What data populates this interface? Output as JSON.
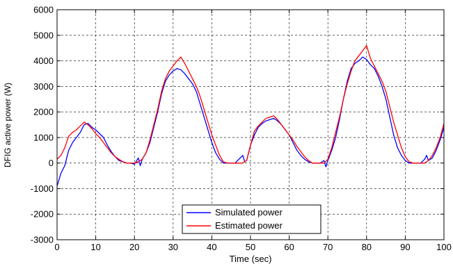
{
  "chart_data": {
    "type": "line",
    "title": "",
    "xlabel": "Time (sec)",
    "ylabel": "DFIG active power (W)",
    "xlim": [
      0,
      100
    ],
    "ylim": [
      -3000,
      6000
    ],
    "xticks": [
      0,
      10,
      20,
      30,
      40,
      50,
      60,
      70,
      80,
      90,
      100
    ],
    "yticks": [
      -3000,
      -2000,
      -1000,
      0,
      1000,
      2000,
      3000,
      4000,
      5000,
      6000
    ],
    "xtick_labels": [
      "0",
      "10",
      "20",
      "30",
      "40",
      "50",
      "60",
      "70",
      "80",
      "90",
      "100"
    ],
    "ytick_labels": [
      "-3000",
      "-2000",
      "-1000",
      "0",
      "1000",
      "2000",
      "3000",
      "4000",
      "5000",
      "6000"
    ],
    "grid": true,
    "grid_style": "dashed",
    "legend_position": "bottom-center",
    "series": [
      {
        "name": "Simulated power",
        "color": "#0000ff",
        "x": [
          0,
          1,
          2,
          3,
          4,
          5,
          6,
          7,
          8,
          9,
          10,
          11,
          12,
          13,
          14,
          15,
          16,
          17,
          18,
          19,
          20,
          21,
          21.5,
          22,
          23,
          24,
          25,
          26,
          27,
          28,
          29,
          30,
          31,
          32,
          33,
          34,
          35,
          36,
          37,
          38,
          39,
          40,
          41,
          42,
          43,
          44,
          45,
          46,
          47,
          48,
          48.5,
          49,
          50,
          51,
          52,
          53,
          54,
          55,
          56,
          57,
          58,
          59,
          60,
          61,
          62,
          63,
          64,
          65,
          66,
          67,
          68,
          69,
          69.5,
          70,
          71,
          72,
          73,
          74,
          75,
          76,
          77,
          78,
          79,
          80,
          81,
          82,
          83,
          84,
          85,
          86,
          87,
          88,
          89,
          90,
          91,
          92,
          93,
          94,
          95,
          95.5,
          96,
          97,
          98,
          99,
          100
        ],
        "y": [
          -900,
          -400,
          -100,
          500,
          800,
          1000,
          1200,
          1500,
          1550,
          1400,
          1300,
          1150,
          1000,
          700,
          450,
          250,
          100,
          50,
          0,
          0,
          -50,
          200,
          -100,
          150,
          400,
          800,
          1400,
          2000,
          2700,
          3200,
          3450,
          3600,
          3700,
          3650,
          3500,
          3300,
          3100,
          2800,
          2300,
          1800,
          1300,
          800,
          400,
          150,
          0,
          0,
          0,
          0,
          150,
          300,
          50,
          100,
          700,
          1100,
          1400,
          1550,
          1650,
          1700,
          1750,
          1650,
          1500,
          1300,
          1100,
          800,
          500,
          300,
          150,
          50,
          0,
          0,
          0,
          100,
          -150,
          100,
          500,
          1000,
          1700,
          2500,
          3200,
          3700,
          3900,
          4000,
          4150,
          4050,
          3850,
          3700,
          3400,
          3000,
          2500,
          1800,
          1100,
          600,
          300,
          100,
          0,
          0,
          0,
          0,
          150,
          300,
          100,
          200,
          500,
          900,
          1400
        ],
        "legend_label": "Simulated power"
      },
      {
        "name": "Estimated power",
        "color": "#ff0000",
        "x": [
          0,
          1,
          2,
          3,
          4,
          5,
          6,
          7,
          8,
          9,
          10,
          11,
          12,
          13,
          14,
          15,
          16,
          17,
          18,
          19,
          20,
          21,
          22,
          23,
          24,
          25,
          26,
          27,
          28,
          29,
          30,
          31,
          32,
          33,
          34,
          35,
          36,
          37,
          38,
          39,
          40,
          41,
          42,
          43,
          44,
          45,
          46,
          47,
          48,
          49,
          50,
          51,
          52,
          53,
          54,
          55,
          56,
          57,
          58,
          59,
          60,
          61,
          62,
          63,
          64,
          65,
          66,
          67,
          68,
          69,
          70,
          71,
          72,
          73,
          74,
          75,
          76,
          77,
          78,
          79,
          80,
          81,
          82,
          83,
          84,
          85,
          86,
          87,
          88,
          89,
          90,
          91,
          92,
          93,
          94,
          95,
          96,
          97,
          98,
          99,
          100
        ],
        "y": [
          150,
          300,
          600,
          1050,
          1200,
          1300,
          1450,
          1600,
          1500,
          1350,
          1150,
          1000,
          800,
          600,
          400,
          250,
          150,
          50,
          0,
          0,
          0,
          50,
          150,
          400,
          900,
          1500,
          2100,
          2800,
          3300,
          3600,
          3800,
          4000,
          4150,
          3900,
          3600,
          3300,
          3000,
          2600,
          2100,
          1600,
          1100,
          700,
          300,
          50,
          0,
          0,
          0,
          0,
          0,
          100,
          700,
          1250,
          1450,
          1600,
          1750,
          1800,
          1850,
          1700,
          1500,
          1300,
          1100,
          900,
          650,
          450,
          250,
          100,
          0,
          0,
          0,
          0,
          150,
          600,
          1200,
          1800,
          2500,
          3100,
          3600,
          4000,
          4200,
          4400,
          4600,
          4100,
          3800,
          3500,
          3200,
          2800,
          2200,
          1600,
          1100,
          600,
          250,
          50,
          0,
          0,
          0,
          0,
          100,
          300,
          600,
          1000,
          1550
        ],
        "legend_label": "Estimated power"
      }
    ]
  }
}
